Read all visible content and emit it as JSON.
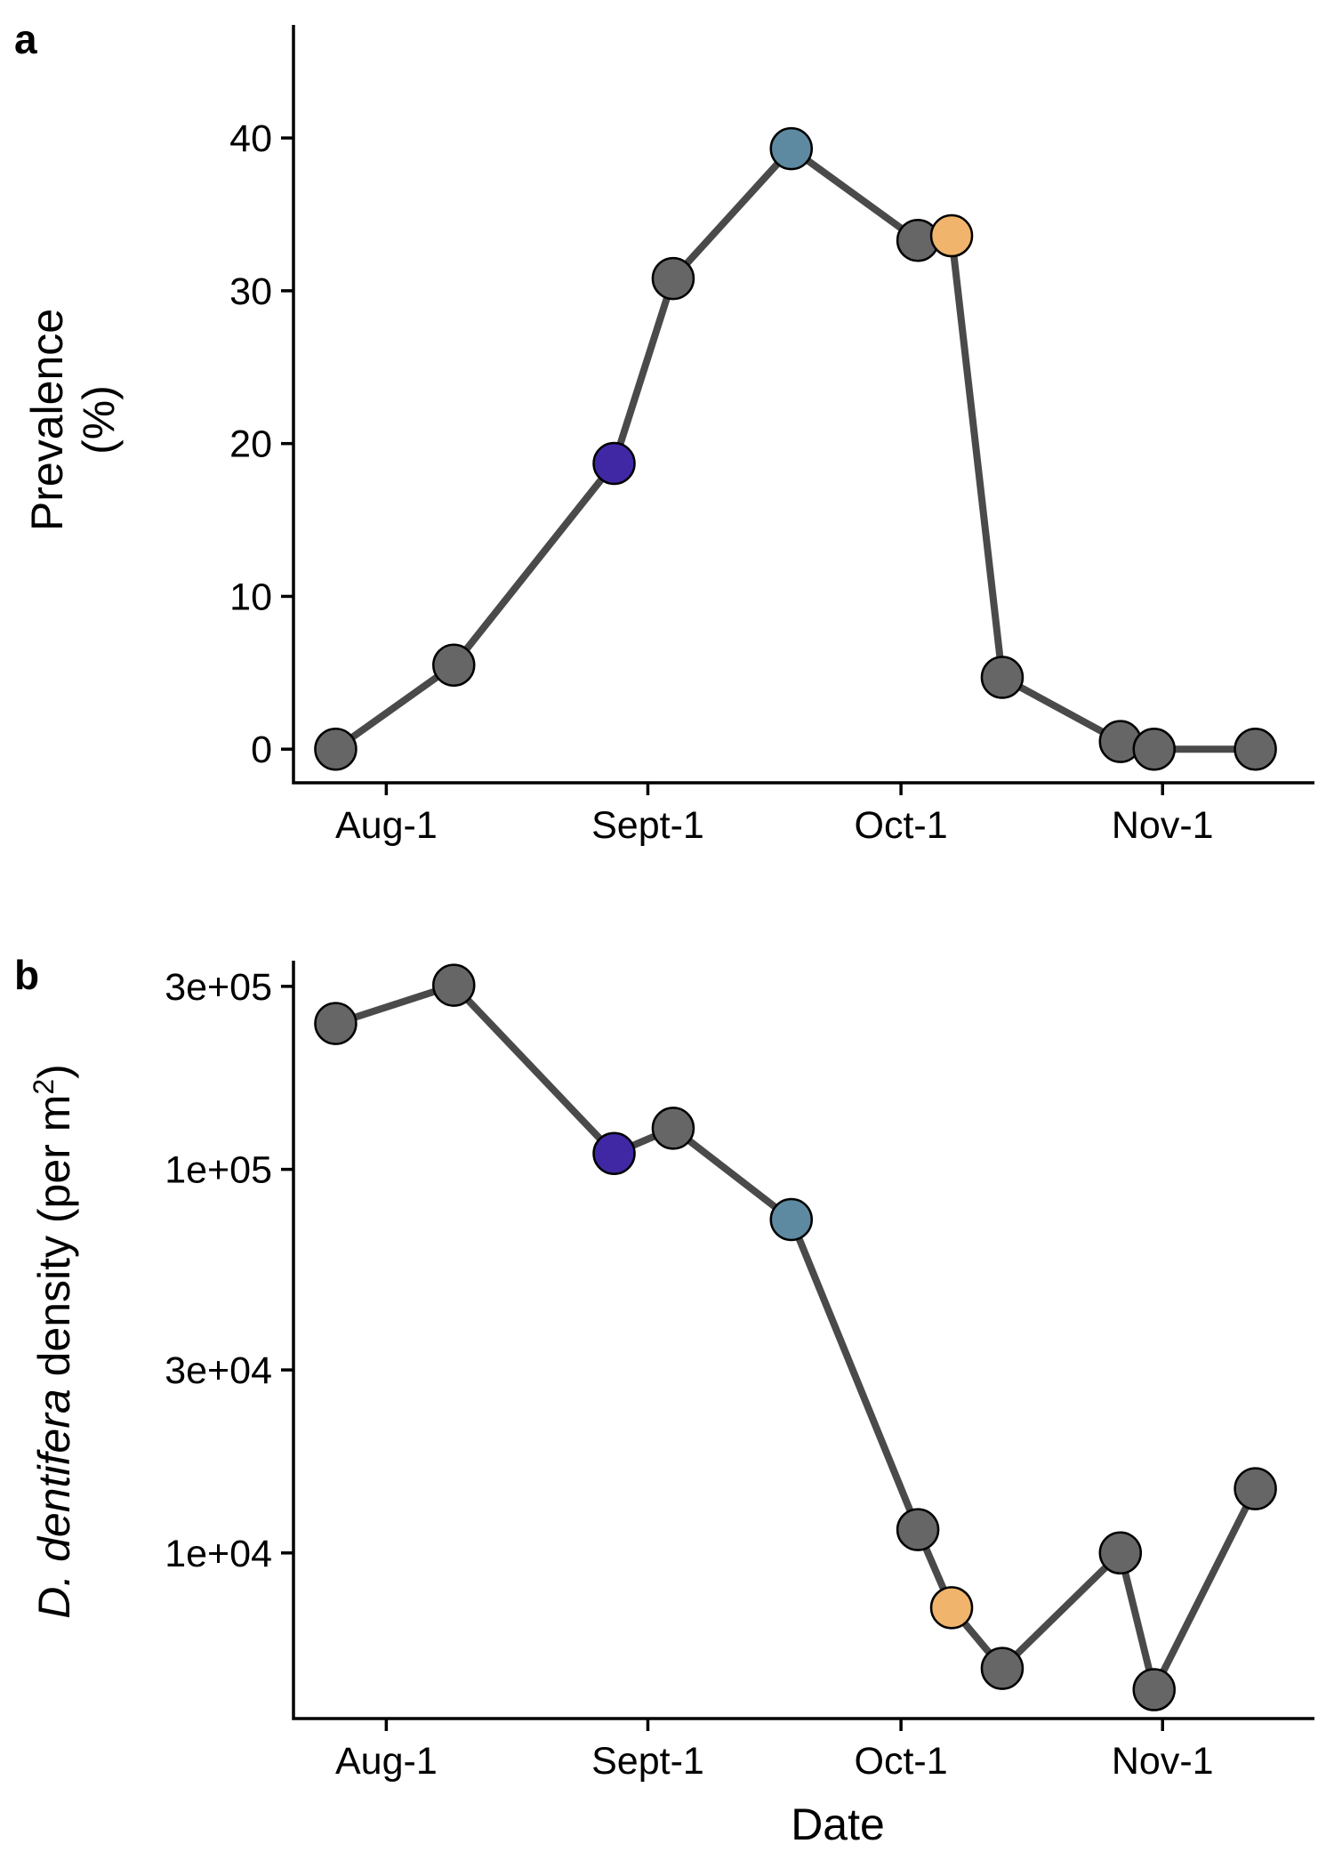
{
  "colors": {
    "line": "#4a4a4a",
    "point_default": "#666666",
    "point_highlight_1": "#4028a4",
    "point_highlight_2": "#5d8aa0",
    "point_highlight_3": "#f0b46c"
  },
  "chart_data": [
    {
      "panel": "a",
      "type": "line",
      "xlabel": "",
      "ylabel_line1": "Prevalence",
      "ylabel_line2": "(%)",
      "x_ticks": [
        "Aug-1",
        "Sept-1",
        "Oct-1",
        "Nov-1"
      ],
      "x_tick_dates": [
        "2000-08-01",
        "2000-09-01",
        "2000-10-01",
        "2000-11-01"
      ],
      "xlim": [
        "2000-07-21",
        "2000-11-19"
      ],
      "y_scale": "linear",
      "ylim": [
        -2.2,
        47.4
      ],
      "y_ticks": [
        0,
        10,
        20,
        30,
        40
      ],
      "y_tick_labels": [
        "0",
        "10",
        "20",
        "30",
        "40"
      ],
      "grid": false,
      "points": [
        {
          "x": "2000-07-26",
          "y": 0,
          "color": "#666666"
        },
        {
          "x": "2000-08-09",
          "y": 5.5,
          "color": "#666666"
        },
        {
          "x": "2000-08-28",
          "y": 18.7,
          "color": "#4028a4"
        },
        {
          "x": "2000-09-04",
          "y": 30.8,
          "color": "#666666"
        },
        {
          "x": "2000-09-18",
          "y": 39.3,
          "color": "#5d8aa0"
        },
        {
          "x": "2000-10-03",
          "y": 33.3,
          "color": "#666666"
        },
        {
          "x": "2000-10-07",
          "y": 33.6,
          "color": "#f0b46c"
        },
        {
          "x": "2000-10-13",
          "y": 4.7,
          "color": "#666666"
        },
        {
          "x": "2000-10-27",
          "y": 0.5,
          "color": "#666666"
        },
        {
          "x": "2000-10-31",
          "y": 0,
          "color": "#666666"
        },
        {
          "x": "2000-11-12",
          "y": 0,
          "color": "#666666"
        }
      ]
    },
    {
      "panel": "b",
      "type": "line",
      "xlabel": "Date",
      "ylabel_italic": "D. dentifera",
      "ylabel_rest": " density (per m",
      "ylabel_sup": "2",
      "ylabel_close": ")",
      "x_ticks": [
        "Aug-1",
        "Sept-1",
        "Oct-1",
        "Nov-1"
      ],
      "x_tick_dates": [
        "2000-08-01",
        "2000-09-01",
        "2000-10-01",
        "2000-11-01"
      ],
      "xlim": [
        "2000-07-21",
        "2000-11-19"
      ],
      "y_scale": "log",
      "ylim": [
        3700,
        350000
      ],
      "y_ticks": [
        10000,
        30000,
        100000,
        300000
      ],
      "y_tick_labels": [
        "1e+04",
        "3e+04",
        "1e+05",
        "3e+05"
      ],
      "grid": false,
      "points": [
        {
          "x": "2000-07-26",
          "y": 240000,
          "color": "#666666"
        },
        {
          "x": "2000-08-09",
          "y": 302000,
          "color": "#666666"
        },
        {
          "x": "2000-08-28",
          "y": 110000,
          "color": "#4028a4"
        },
        {
          "x": "2000-09-04",
          "y": 128000,
          "color": "#666666"
        },
        {
          "x": "2000-09-18",
          "y": 74000,
          "color": "#5d8aa0"
        },
        {
          "x": "2000-10-03",
          "y": 11500,
          "color": "#666666"
        },
        {
          "x": "2000-10-07",
          "y": 7200,
          "color": "#f0b46c"
        },
        {
          "x": "2000-10-13",
          "y": 5000,
          "color": "#666666"
        },
        {
          "x": "2000-10-27",
          "y": 10000,
          "color": "#666666"
        },
        {
          "x": "2000-10-31",
          "y": 4400,
          "color": "#666666"
        },
        {
          "x": "2000-11-12",
          "y": 14700,
          "color": "#666666"
        }
      ]
    }
  ]
}
